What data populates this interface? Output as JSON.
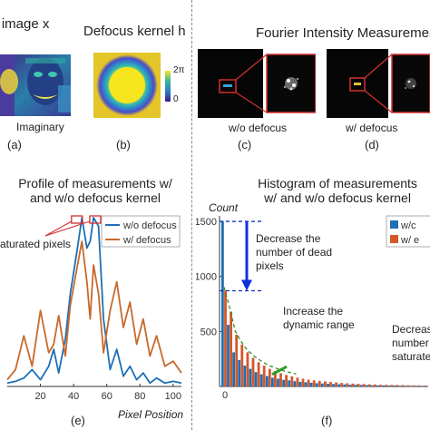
{
  "panels": {
    "a": {
      "title": "al image x",
      "caption": "Imaginary",
      "letter": "(a)"
    },
    "b": {
      "title": "Defocus kernel h",
      "letter": "(b)",
      "colorbar_top": "2π",
      "colorbar_bottom": "0"
    },
    "c_d_title": "Fourier Intensity Measurement",
    "c": {
      "caption": "w/o defocus",
      "letter": "(c)"
    },
    "d": {
      "caption": "w/ defocus",
      "letter": "(d)"
    },
    "e": {
      "title_line1": "Profile of measurements w/",
      "title_line2": "and w/o defocus kernel",
      "annotation": "aturated pixels",
      "letter": "(e)",
      "xlabel": "Pixel Position"
    },
    "f": {
      "title_line1": "Histogram of measurements",
      "title_line2": "w/ and w/o defocus kernel",
      "ylabel": "Count",
      "letter": "(f)",
      "annotation1": [
        "Decrease the",
        "number of dead",
        "pixels"
      ],
      "annotation2": [
        "Increase the",
        "dynamic range"
      ],
      "annotation3": [
        "Decreas",
        "number",
        "saturate"
      ]
    }
  },
  "chart_data": [
    {
      "type": "line",
      "xlim": [
        0,
        105
      ],
      "x_ticks": [
        "20",
        "40",
        "60",
        "80",
        "100"
      ],
      "legend_placement": "top-right",
      "series": [
        {
          "name": "w/o defocus",
          "color": "#1f6fb5",
          "x": [
            0,
            5,
            10,
            15,
            20,
            25,
            28,
            31,
            35,
            38,
            42,
            45,
            48,
            50,
            52,
            55,
            58,
            62,
            66,
            70,
            74,
            78,
            82,
            86,
            90,
            95,
            100,
            105
          ],
          "y": [
            0.02,
            0.03,
            0.05,
            0.1,
            0.04,
            0.12,
            0.22,
            0.08,
            0.28,
            0.55,
            0.8,
            1.0,
            0.82,
            0.86,
            1.0,
            0.95,
            0.4,
            0.1,
            0.22,
            0.06,
            0.12,
            0.04,
            0.08,
            0.02,
            0.05,
            0.02,
            0.03,
            0.02
          ]
        },
        {
          "name": "w/ defocus",
          "color": "#c8692c",
          "x": [
            0,
            5,
            10,
            15,
            20,
            25,
            28,
            31,
            35,
            38,
            42,
            45,
            48,
            50,
            52,
            55,
            58,
            62,
            66,
            70,
            74,
            78,
            82,
            86,
            90,
            95,
            100,
            105
          ],
          "y": [
            0.04,
            0.1,
            0.3,
            0.12,
            0.45,
            0.2,
            0.25,
            0.42,
            0.18,
            0.48,
            0.7,
            0.86,
            0.62,
            0.4,
            0.72,
            0.55,
            0.2,
            0.45,
            0.62,
            0.35,
            0.5,
            0.25,
            0.4,
            0.18,
            0.3,
            0.12,
            0.15,
            0.08
          ]
        }
      ]
    },
    {
      "type": "bar",
      "ylim": [
        0,
        1550
      ],
      "y_ticks": [
        500,
        1000,
        1500
      ],
      "x_ticks": [
        "0"
      ],
      "legend_placement": "top-right",
      "series": [
        {
          "name": "w/c",
          "color": "#1f6fb5",
          "values": [
            1500,
            560,
            310,
            240,
            190,
            160,
            130,
            110,
            95,
            80,
            70,
            60,
            55,
            48,
            42,
            38,
            34,
            30,
            27,
            25,
            22,
            20,
            18,
            16,
            15,
            14,
            12,
            11,
            10,
            9,
            8,
            8,
            7,
            7,
            6,
            6,
            5
          ]
        },
        {
          "name": "w/ e",
          "color": "#d4572a",
          "values": [
            870,
            680,
            470,
            380,
            310,
            260,
            220,
            190,
            160,
            140,
            120,
            105,
            92,
            80,
            70,
            62,
            55,
            50,
            45,
            40,
            36,
            32,
            29,
            26,
            24,
            22,
            20,
            18,
            16,
            15,
            14,
            13,
            12,
            11,
            10,
            10,
            9
          ]
        }
      ]
    }
  ]
}
